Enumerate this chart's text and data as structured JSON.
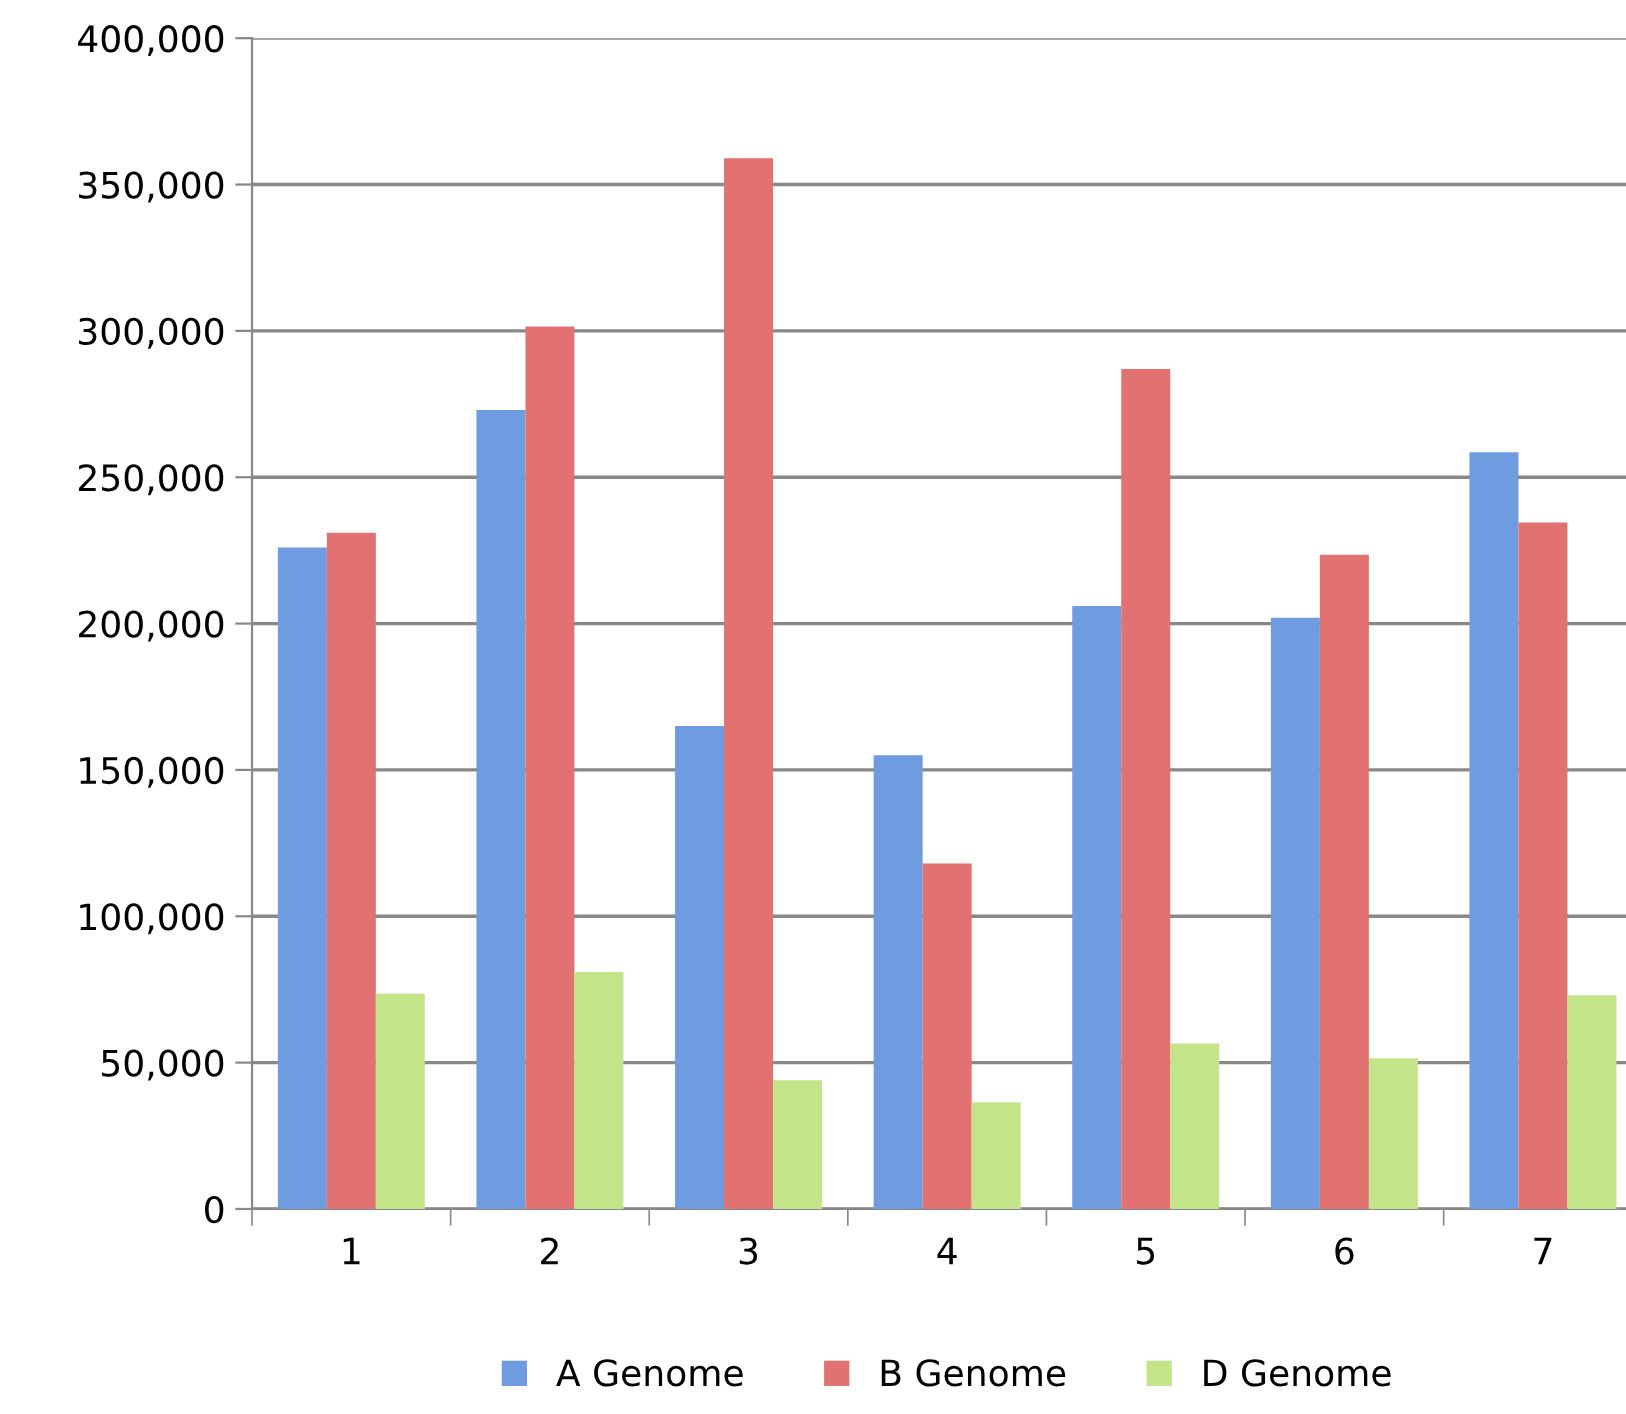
{
  "chart_data": {
    "type": "bar",
    "categories": [
      "1",
      "2",
      "3",
      "4",
      "5",
      "6",
      "7"
    ],
    "series": [
      {
        "name": "A Genome",
        "color": "#6f9be0",
        "values": [
          226000,
          273000,
          165000,
          155000,
          206000,
          202000,
          258500
        ]
      },
      {
        "name": "B Genome",
        "color": "#e27171",
        "values": [
          231000,
          301500,
          359000,
          118000,
          287000,
          223500,
          234500
        ]
      },
      {
        "name": "D Genome",
        "color": "#c4e48a",
        "values": [
          73500,
          81000,
          44000,
          36500,
          56500,
          51500,
          73000
        ]
      }
    ],
    "ylim": [
      0,
      400000
    ],
    "yticks": [
      {
        "value": 0,
        "label": "0"
      },
      {
        "value": 50000,
        "label": "50,000"
      },
      {
        "value": 100000,
        "label": "100,000"
      },
      {
        "value": 150000,
        "label": "150,000"
      },
      {
        "value": 200000,
        "label": "200,000"
      },
      {
        "value": 250000,
        "label": "250,000"
      },
      {
        "value": 300000,
        "label": "300,000"
      },
      {
        "value": 350000,
        "label": "350,000"
      },
      {
        "value": 400000,
        "label": "400,000"
      }
    ],
    "grid": "y",
    "legend": "bottom"
  }
}
